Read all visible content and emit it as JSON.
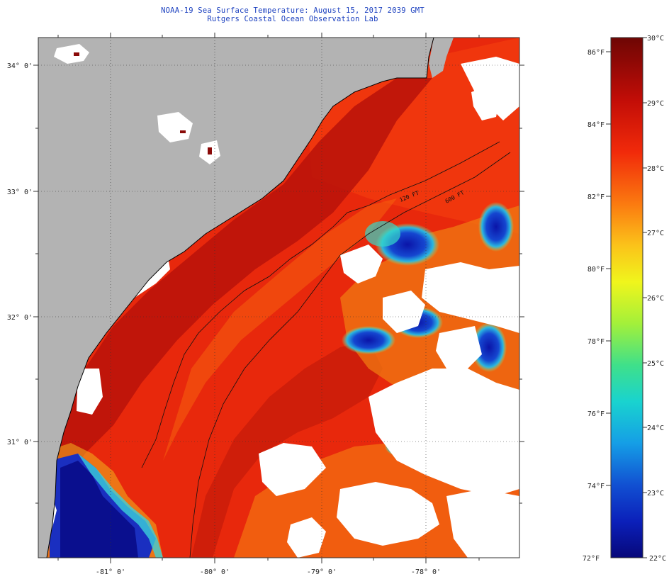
{
  "title_line1": "NOAA-19 Sea Surface Temperature:  August 15, 2017 2039 GMT",
  "title_line2": "Rutgers Coastal Ocean Observation Lab",
  "lat_labels": [
    {
      "value": 34,
      "text": "34° 0'"
    },
    {
      "value": 33,
      "text": "33° 0'"
    },
    {
      "value": 32,
      "text": "32° 0'"
    },
    {
      "value": 31,
      "text": "31° 0'"
    }
  ],
  "lon_labels": [
    {
      "value": -81,
      "text": "-81° 0'"
    },
    {
      "value": -80,
      "text": "-80° 0'"
    },
    {
      "value": -79,
      "text": "-79° 0'"
    },
    {
      "value": -78,
      "text": "-78° 0'"
    }
  ],
  "isobaths": [
    "120 FT",
    "600 FT"
  ],
  "colorbar": {
    "fahrenheit": [
      "86°F",
      "84°F",
      "82°F",
      "80°F",
      "78°F",
      "76°F",
      "74°F",
      "72°F"
    ],
    "celsius": [
      "30°C",
      "29°C",
      "28°C",
      "27°C",
      "26°C",
      "25°C",
      "24°C",
      "23°C",
      "22°C"
    ],
    "range_c": [
      22,
      30
    ]
  },
  "colors": {
    "land": "#b3b3b3",
    "cloud": "#ffffff",
    "title": "#1a3fbf",
    "sst_warm": "#d31f0c",
    "sst_hot": "#8a0a08",
    "sst_cool": "#0d1fb0"
  }
}
